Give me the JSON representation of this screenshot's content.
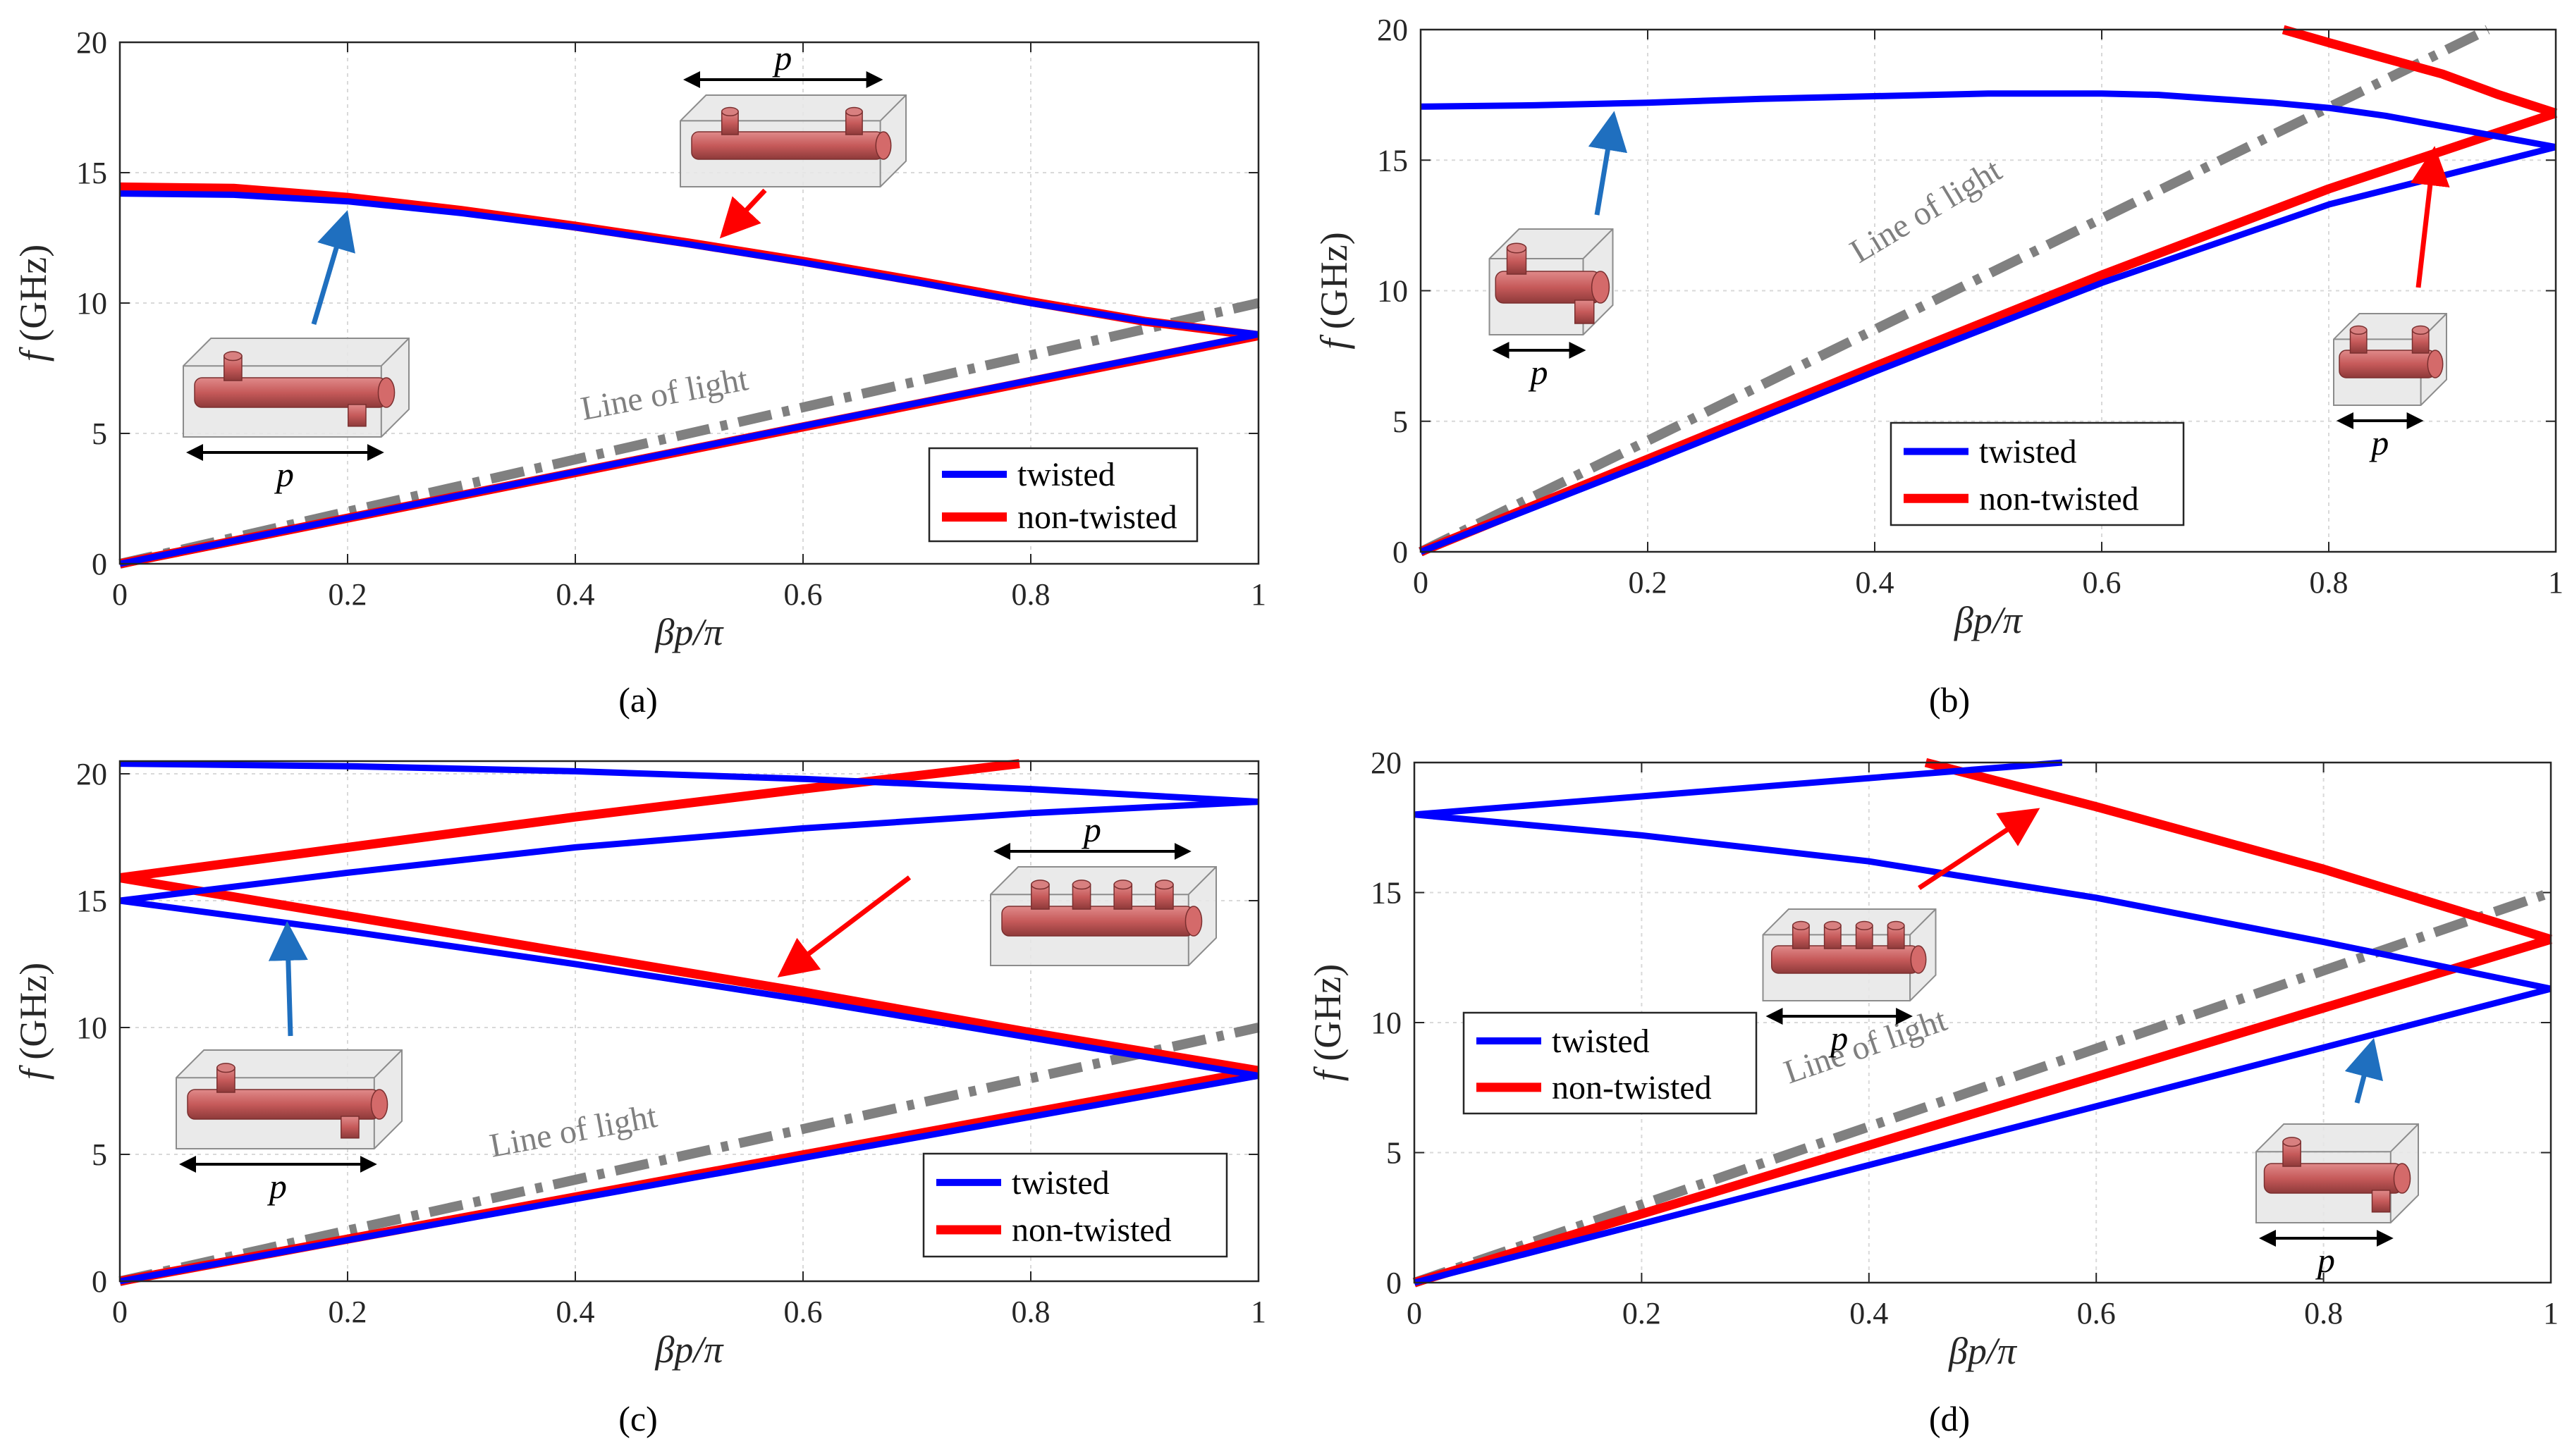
{
  "colors": {
    "twisted": "#0000ff",
    "non_twisted": "#ff0000",
    "line_of_light": "#808080",
    "arrow_blue": "#1f6fbf",
    "arrow_red": "#ff0000",
    "grid": "#d9d9d9"
  },
  "icons": [
    "twisted-unit-cell-icon",
    "non-twisted-unit-cell-icon",
    "double-arrow-period-icon"
  ],
  "chart_data": [
    {
      "type": "line",
      "panel": "(a)",
      "xlabel": "βp/π",
      "ylabel_italic": "f",
      "ylabel_unit": " (GHz)",
      "xlim": [
        0,
        1
      ],
      "ylim": [
        0,
        20
      ],
      "xticks": [
        0,
        0.2,
        0.4,
        0.6,
        0.8,
        1
      ],
      "xtick_labels": [
        "0",
        "0.2",
        "0.4",
        "0.6",
        "0.8",
        "1"
      ],
      "yticks": [
        0,
        5,
        10,
        15,
        20
      ],
      "ytick_labels": [
        "0",
        "5",
        "10",
        "15",
        "20"
      ],
      "series": [
        {
          "name": "twisted",
          "color": "#0000ff",
          "branches": [
            {
              "x": [
                0,
                0.1,
                0.2,
                0.3,
                0.4,
                0.5,
                0.6,
                0.7,
                0.8,
                0.9,
                1.0
              ],
              "y": [
                14.2,
                14.15,
                13.9,
                13.45,
                12.9,
                12.25,
                11.55,
                10.8,
                10.0,
                9.3,
                8.8
              ]
            },
            {
              "x": [
                0,
                1
              ],
              "y": [
                0,
                8.8
              ]
            }
          ]
        },
        {
          "name": "non-twisted",
          "color": "#ff0000",
          "branches": [
            {
              "x": [
                0,
                0.1,
                0.2,
                0.3,
                0.4,
                0.5,
                0.6,
                0.7,
                0.8,
                0.9,
                1.0
              ],
              "y": [
                14.45,
                14.4,
                14.05,
                13.55,
                12.95,
                12.3,
                11.6,
                10.85,
                10.05,
                9.3,
                8.75
              ]
            },
            {
              "x": [
                0,
                1
              ],
              "y": [
                0,
                8.75
              ]
            }
          ]
        }
      ],
      "light_line": {
        "x": [
          0,
          1
        ],
        "y": [
          0,
          10
        ]
      },
      "light_label": "Line of light",
      "legend": {
        "position": "bottom-right",
        "entries": [
          "twisted",
          "non-twisted"
        ]
      },
      "inset_label": "p",
      "caption": "(a)"
    },
    {
      "type": "line",
      "panel": "(b)",
      "xlabel": "βp/π",
      "ylabel_italic": "f",
      "ylabel_unit": " (GHz)",
      "xlim": [
        0,
        1
      ],
      "ylim": [
        0,
        20
      ],
      "xticks": [
        0,
        0.2,
        0.4,
        0.6,
        0.8,
        1
      ],
      "xtick_labels": [
        "0",
        "0.2",
        "0.4",
        "0.6",
        "0.8",
        "1"
      ],
      "yticks": [
        0,
        5,
        10,
        15,
        20
      ],
      "ytick_labels": [
        "0",
        "5",
        "10",
        "15",
        "20"
      ],
      "series": [
        {
          "name": "twisted",
          "color": "#0000ff",
          "branches": [
            {
              "x": [
                0,
                0.1,
                0.2,
                0.3,
                0.4,
                0.5,
                0.6,
                0.65,
                0.7,
                0.75,
                0.8,
                0.85,
                0.9,
                0.95,
                1.0
              ],
              "y": [
                17.05,
                17.1,
                17.2,
                17.35,
                17.45,
                17.55,
                17.55,
                17.5,
                17.35,
                17.2,
                17.0,
                16.7,
                16.3,
                15.9,
                15.5
              ]
            },
            {
              "x": [
                0,
                0.2,
                0.4,
                0.6,
                0.8,
                1.0
              ],
              "y": [
                0,
                3.4,
                6.9,
                10.3,
                13.3,
                15.5
              ]
            }
          ]
        },
        {
          "name": "non-twisted",
          "color": "#ff0000",
          "branches": [
            {
              "x": [
                0.76,
                0.8,
                0.85,
                0.9,
                0.95,
                1.0
              ],
              "y": [
                20.0,
                19.5,
                18.9,
                18.3,
                17.5,
                16.8
              ]
            },
            {
              "x": [
                0,
                0.2,
                0.4,
                0.6,
                0.8,
                1.0
              ],
              "y": [
                0,
                3.55,
                7.1,
                10.6,
                13.9,
                16.8
              ]
            }
          ]
        }
      ],
      "light_line": {
        "x": [
          0,
          0.94
        ],
        "y": [
          0,
          20
        ]
      },
      "light_label": "Line of light",
      "legend": {
        "position": "bottom-center",
        "entries": [
          "twisted",
          "non-twisted"
        ]
      },
      "inset_label": "p",
      "caption": "(b)"
    },
    {
      "type": "line",
      "panel": "(c)",
      "xlabel": "βp/π",
      "ylabel_italic": "f",
      "ylabel_unit": " (GHz)",
      "xlim": [
        0,
        1
      ],
      "ylim": [
        0,
        20.5
      ],
      "xticks": [
        0,
        0.2,
        0.4,
        0.6,
        0.8,
        1
      ],
      "xtick_labels": [
        "0",
        "0.2",
        "0.4",
        "0.6",
        "0.8",
        "1"
      ],
      "yticks": [
        0,
        5,
        10,
        15,
        20
      ],
      "ytick_labels": [
        "0",
        "5",
        "10",
        "15",
        "20"
      ],
      "series": [
        {
          "name": "twisted",
          "color": "#0000ff",
          "branches": [
            {
              "x": [
                0,
                0.2,
                0.4,
                0.6,
                0.8,
                1.0
              ],
              "y": [
                20.4,
                20.3,
                20.1,
                19.8,
                19.4,
                18.9
              ]
            },
            {
              "x": [
                0,
                0.2,
                0.4,
                0.6,
                0.8,
                1.0
              ],
              "y": [
                15.0,
                16.1,
                17.1,
                17.85,
                18.45,
                18.9
              ]
            },
            {
              "x": [
                0,
                0.2,
                0.4,
                0.6,
                0.8,
                1.0
              ],
              "y": [
                15.0,
                13.8,
                12.5,
                11.1,
                9.6,
                8.1
              ]
            },
            {
              "x": [
                0,
                1
              ],
              "y": [
                0,
                8.1
              ]
            }
          ]
        },
        {
          "name": "non-twisted",
          "color": "#ff0000",
          "branches": [
            {
              "x": [
                0,
                0.2,
                0.4,
                0.6,
                0.79
              ],
              "y": [
                15.9,
                17.1,
                18.3,
                19.4,
                20.4
              ]
            },
            {
              "x": [
                0,
                0.2,
                0.4,
                0.6,
                0.8,
                1.0
              ],
              "y": [
                15.9,
                14.4,
                12.9,
                11.4,
                9.8,
                8.3
              ]
            },
            {
              "x": [
                0,
                1
              ],
              "y": [
                0,
                8.3
              ]
            }
          ]
        }
      ],
      "light_line": {
        "x": [
          0,
          1
        ],
        "y": [
          0,
          10
        ]
      },
      "light_label": "Line of light",
      "legend": {
        "position": "bottom-right",
        "entries": [
          "twisted",
          "non-twisted"
        ]
      },
      "inset_label": "p",
      "caption": "(c)"
    },
    {
      "type": "line",
      "panel": "(d)",
      "xlabel": "βp/π",
      "ylabel_italic": "f",
      "ylabel_unit": " (GHz)",
      "xlim": [
        0,
        1
      ],
      "ylim": [
        0,
        20
      ],
      "xticks": [
        0,
        0.2,
        0.4,
        0.6,
        0.8,
        1
      ],
      "xtick_labels": [
        "0",
        "0.2",
        "0.4",
        "0.6",
        "0.8",
        "1"
      ],
      "yticks": [
        0,
        5,
        10,
        15,
        20
      ],
      "ytick_labels": [
        "0",
        "5",
        "10",
        "15",
        "20"
      ],
      "series": [
        {
          "name": "twisted",
          "color": "#0000ff",
          "branches": [
            {
              "x": [
                0,
                0.2,
                0.4,
                0.57
              ],
              "y": [
                18.0,
                18.7,
                19.4,
                20.0
              ]
            },
            {
              "x": [
                0,
                0.2,
                0.4,
                0.6,
                0.8,
                1.0
              ],
              "y": [
                18.0,
                17.2,
                16.2,
                14.8,
                13.1,
                11.3
              ]
            },
            {
              "x": [
                0,
                1
              ],
              "y": [
                0,
                11.3
              ]
            }
          ]
        },
        {
          "name": "non-twisted",
          "color": "#ff0000",
          "branches": [
            {
              "x": [
                0.45,
                0.6,
                0.8,
                1.0
              ],
              "y": [
                20.0,
                18.3,
                15.9,
                13.2
              ]
            },
            {
              "x": [
                0,
                1
              ],
              "y": [
                0,
                13.2
              ]
            }
          ]
        }
      ],
      "light_line": {
        "x": [
          0,
          1
        ],
        "y": [
          0,
          15
        ]
      },
      "light_label": "Line of light",
      "legend": {
        "position": "top-left",
        "entries": [
          "twisted",
          "non-twisted"
        ]
      },
      "inset_label": "p",
      "caption": "(d)"
    }
  ]
}
